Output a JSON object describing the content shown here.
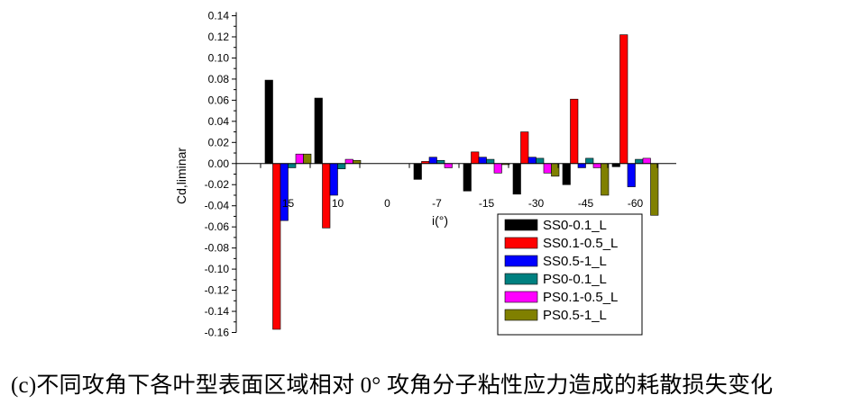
{
  "chart_data": {
    "type": "bar",
    "title": "",
    "xlabel": "i(°)",
    "ylabel": "Cd,liminar",
    "ylim": [
      -0.16,
      0.14
    ],
    "yticks": [
      0.14,
      0.12,
      0.1,
      0.08,
      0.06,
      0.04,
      0.02,
      0.0,
      -0.02,
      -0.04,
      -0.06,
      -0.08,
      -0.1,
      -0.12,
      -0.14,
      -0.16
    ],
    "ytick_labels": [
      "0.14",
      "0.12",
      "0.10",
      "0.08",
      "0.06",
      "0.04",
      "0.02",
      "0.00",
      "-0.02",
      "-0.04",
      "-0.06",
      "-0.08",
      "-0.10",
      "-0.12",
      "-0.14",
      "-0.16"
    ],
    "categories": [
      "15",
      "10",
      "0",
      "-7",
      "-15",
      "-30",
      "-45",
      "-60"
    ],
    "grid": false,
    "legend_position": "bottom-right",
    "series": [
      {
        "name": "SS0-0.1_L",
        "color": "#000000",
        "values": [
          0.079,
          0.062,
          0,
          -0.015,
          -0.026,
          -0.029,
          -0.02,
          -0.003
        ]
      },
      {
        "name": "SS0.1-0.5_L",
        "color": "#ff0000",
        "values": [
          -0.157,
          -0.061,
          0,
          0.002,
          0.011,
          0.03,
          0.061,
          0.122
        ]
      },
      {
        "name": "SS0.5-1_L",
        "color": "#0000ff",
        "values": [
          -0.054,
          -0.03,
          0,
          0.006,
          0.006,
          0.006,
          -0.004,
          -0.022
        ]
      },
      {
        "name": "PS0-0.1_L",
        "color": "#008080",
        "values": [
          -0.004,
          -0.005,
          0,
          0.003,
          0.004,
          0.005,
          0.005,
          0.004
        ]
      },
      {
        "name": "PS0.1-0.5_L",
        "color": "#ff00ff",
        "values": [
          0.009,
          0.004,
          0,
          -0.004,
          -0.009,
          -0.009,
          -0.004,
          0.005
        ]
      },
      {
        "name": "PS0.5-1_L",
        "color": "#808000",
        "values": [
          0.009,
          0.003,
          0,
          0,
          -0.001,
          -0.012,
          -0.03,
          -0.049
        ]
      }
    ]
  },
  "caption": "(c)不同攻角下各叶型表面区域相对 0° 攻角分子粘性应力造成的耗散损失变化"
}
